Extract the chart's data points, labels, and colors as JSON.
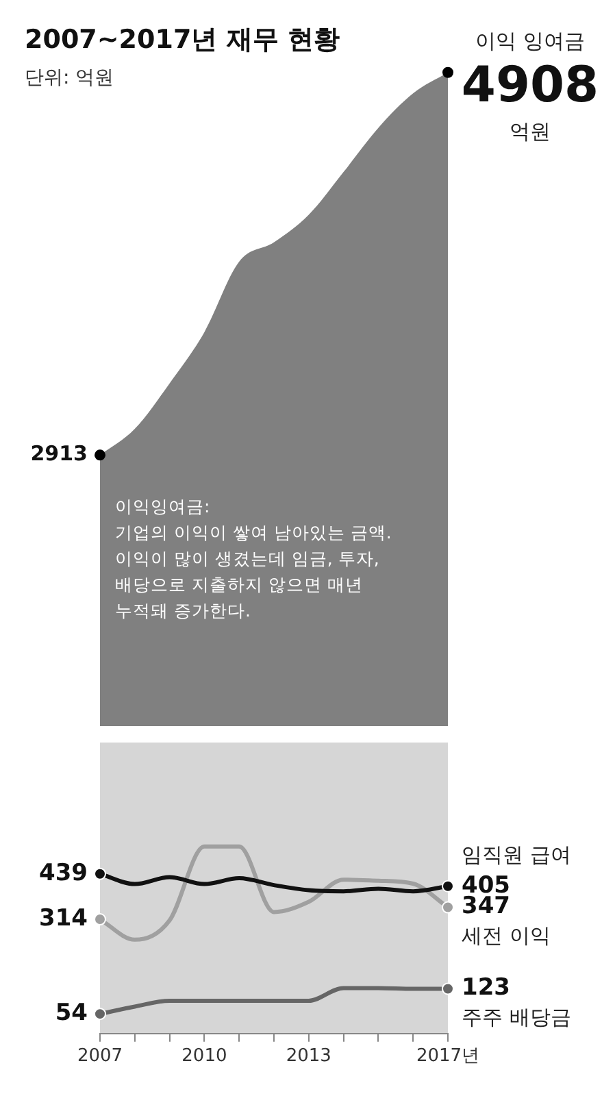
{
  "chart_data": [
    {
      "type": "area",
      "title": "2007~2017년 재무 현황",
      "subtitle": "단위: 억원",
      "categories": [
        null,
        null,
        null,
        null,
        null,
        null,
        null,
        null,
        null,
        null,
        null
      ],
      "series": [
        {
          "name": "이익 잉여금",
          "color": "#808080",
          "values": [
            2913,
            3050,
            3287,
            3554,
            3921,
            4022,
            4166,
            4389,
            4619,
            4799,
            4908
          ],
          "value_labels": [
            "2913",
            null,
            null,
            null,
            null,
            null,
            null,
            null,
            null,
            null,
            "4908"
          ]
        }
      ],
      "annotations": [
        "이익잉여금:\n기업의 이익이 쌓여 남아있는 금액.\n이익이 많이 생겼는데 임금, 투자,\n배당으로 지출하지 않으면 매년\n누적돼 증가한다.",
        "억원"
      ],
      "tick_labels": false
    },
    {
      "type": "line",
      "categories": [
        "2007",
        null,
        null,
        "2010",
        null,
        null,
        "2013",
        null,
        null,
        null,
        "2017년"
      ],
      "series": [
        {
          "name": "임직원 급여",
          "color": "#111111",
          "values": [
            439,
            411,
            430,
            411,
            427,
            408,
            394,
            391,
            398,
            391,
            405
          ],
          "value_labels": [
            "439",
            null,
            null,
            null,
            null,
            null,
            null,
            null,
            null,
            null,
            "405"
          ]
        },
        {
          "name": "세전 이익",
          "color": "#a0a0a0",
          "values": [
            314,
            258,
            311,
            514,
            514,
            334,
            362,
            423,
            420,
            412,
            347
          ],
          "value_labels": [
            "314",
            null,
            null,
            null,
            null,
            null,
            null,
            null,
            null,
            null,
            "347"
          ]
        },
        {
          "name": "주주 배당금",
          "color": "#666666",
          "values": [
            54,
            74,
            90,
            90,
            90,
            90,
            90,
            125,
            125,
            123,
            123
          ],
          "value_labels": [
            "54",
            null,
            null,
            null,
            null,
            null,
            null,
            null,
            null,
            null,
            "123"
          ]
        }
      ],
      "ylim": [
        0,
        800
      ],
      "tick_labels": "x"
    }
  ]
}
